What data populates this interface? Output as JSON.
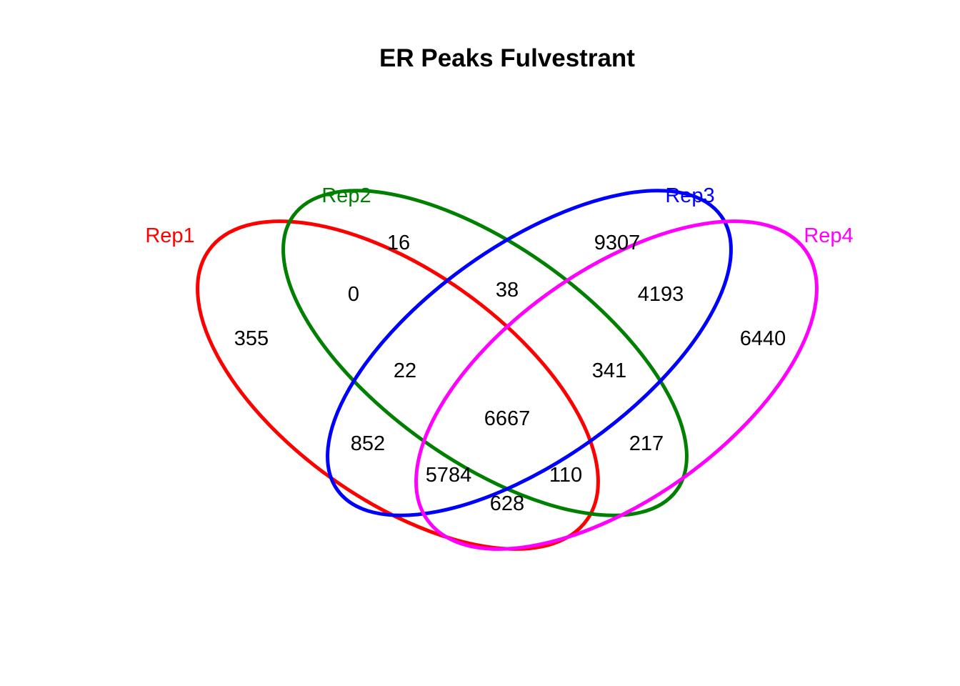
{
  "title": "ER Peaks Fulvestrant",
  "sets": [
    {
      "key": "rep1",
      "name": "Rep1",
      "color": "#ff0000"
    },
    {
      "key": "rep2",
      "name": "Rep2",
      "color": "#008000"
    },
    {
      "key": "rep3",
      "name": "Rep3",
      "color": "#0000ff"
    },
    {
      "key": "rep4",
      "name": "Rep4",
      "color": "#ff00ff"
    }
  ],
  "regions": {
    "rep1_only": "355",
    "rep2_only": "16",
    "rep3_only": "9307",
    "rep4_only": "6440",
    "rep1_rep2": "0",
    "rep2_rep3": "38",
    "rep3_rep4": "4193",
    "rep1_rep2_rep3": "22",
    "rep2_rep3_rep4": "341",
    "all_four": "6667",
    "rep1_rep3": "852",
    "rep2_rep4": "217",
    "rep1_rep3_rep4": "5784",
    "rep1_rep2_rep4": "110",
    "rep1_rep4": "628"
  }
}
